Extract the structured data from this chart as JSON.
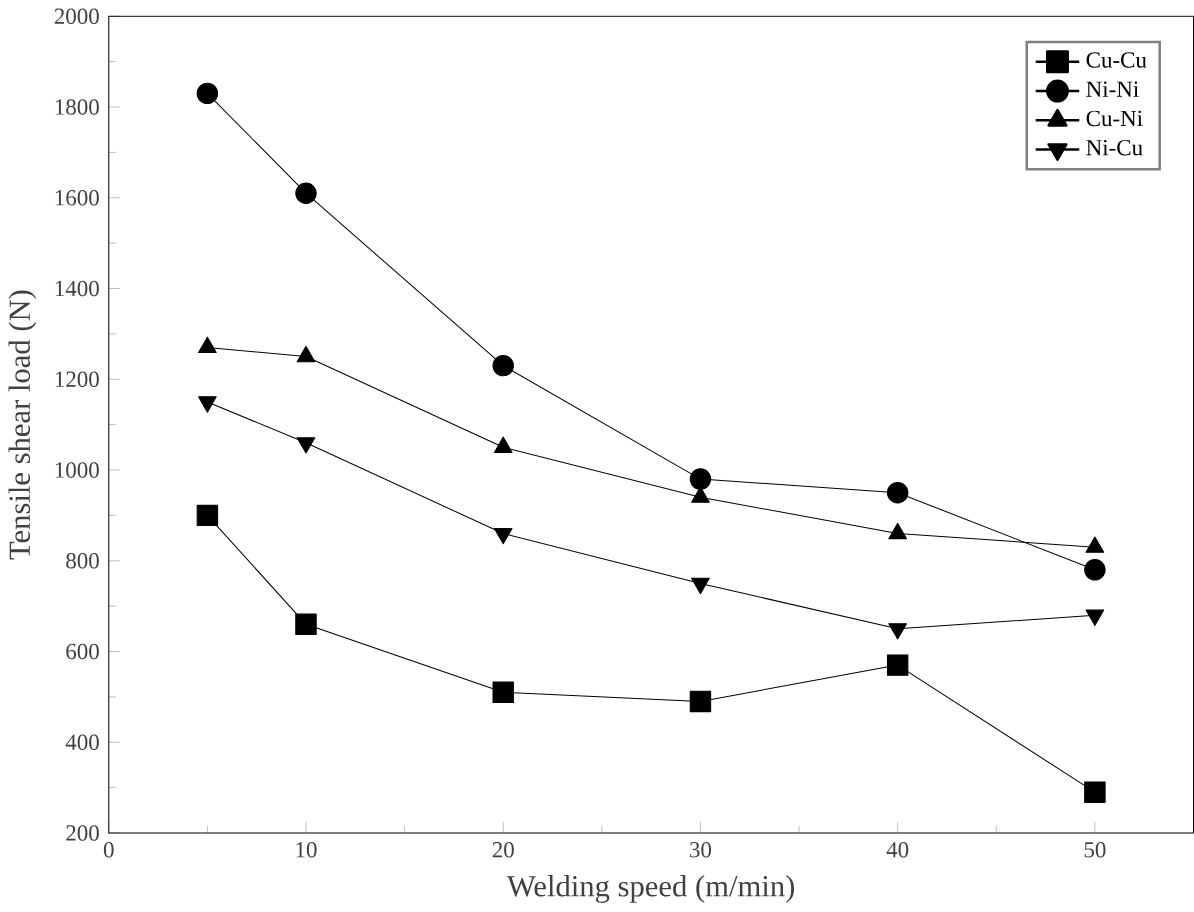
{
  "chart_data": {
    "type": "line",
    "xlabel": "Welding speed (m/min)",
    "ylabel": "Tensile shear load (N)",
    "x": [
      5,
      10,
      20,
      30,
      40,
      50
    ],
    "xlim": [
      0,
      55
    ],
    "xticks": [
      0,
      10,
      20,
      30,
      40,
      50
    ],
    "ylim": [
      200,
      2000
    ],
    "yticks": [
      200,
      400,
      600,
      800,
      1000,
      1200,
      1400,
      1600,
      1800,
      2000
    ],
    "legend": "top right",
    "line_style": "solid",
    "series": [
      {
        "name": "Cu-Cu",
        "color": "#000000",
        "marker": "square",
        "values": [
          900,
          660,
          510,
          490,
          570,
          290
        ]
      },
      {
        "name": "Ni-Ni",
        "color": "#000000",
        "marker": "circle",
        "values": [
          1830,
          1610,
          1230,
          980,
          950,
          780
        ]
      },
      {
        "name": "Cu-Ni",
        "color": "#000000",
        "marker": "triangle",
        "values": [
          1270,
          1250,
          1050,
          940,
          860,
          830
        ]
      },
      {
        "name": "Ni-Cu",
        "color": "#000000",
        "marker": "triangle down",
        "values": [
          1150,
          1060,
          860,
          750,
          650,
          680
        ]
      }
    ]
  }
}
